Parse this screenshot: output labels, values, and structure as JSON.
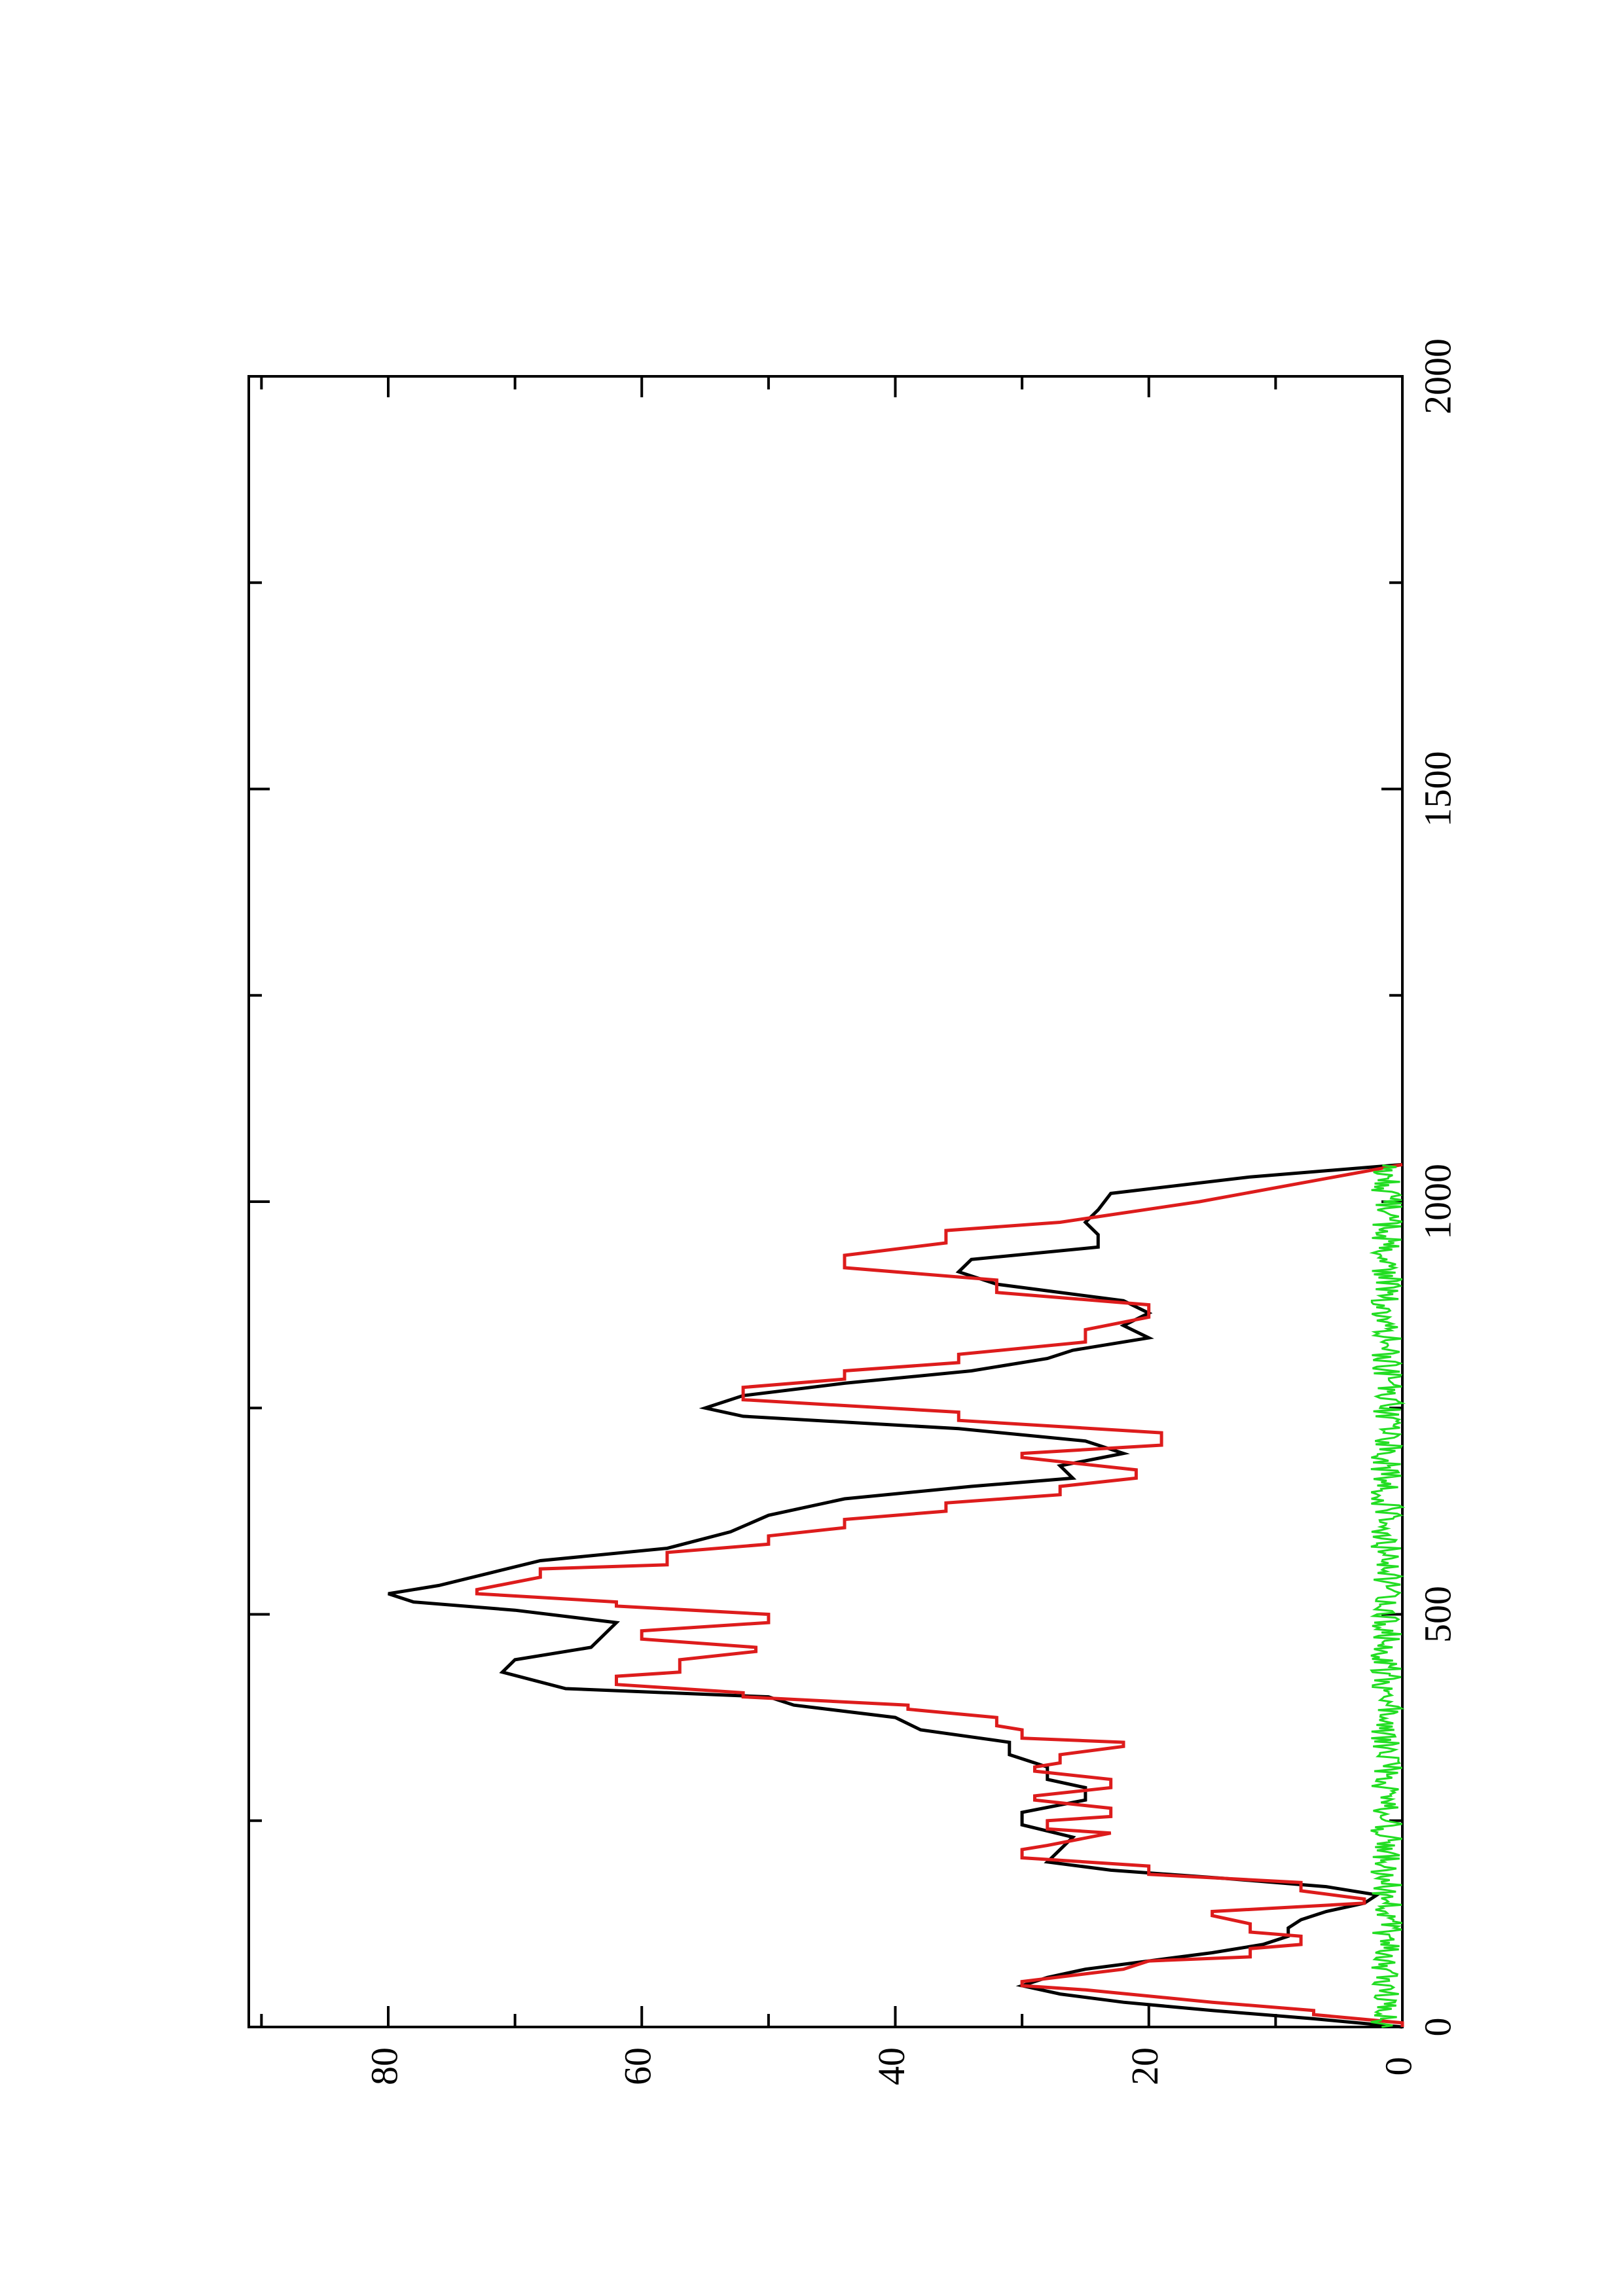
{
  "chart_data": {
    "type": "line",
    "orientation": "rotated 90° counter-clockwise (x axis runs vertically, y axis horizontally)",
    "title": "",
    "xlabel": "",
    "ylabel": "",
    "xlim": [
      0,
      2000
    ],
    "ylim": [
      0,
      91
    ],
    "x_major_ticks": [
      0,
      500,
      1000,
      1500,
      2000
    ],
    "x_minor_ticks": [
      250,
      750,
      1250,
      1750
    ],
    "y_major_ticks": [
      0,
      20,
      40,
      60,
      80
    ],
    "y_minor_ticks": [
      10,
      30,
      50,
      70,
      90
    ],
    "x_tick_labels": [
      "0",
      "500",
      "1000",
      "1500",
      "2000"
    ],
    "y_tick_labels": [
      "0",
      "20",
      "40",
      "60",
      "80"
    ],
    "grid": false,
    "legend": "none",
    "series": [
      {
        "color": "#000000",
        "x": [
          0,
          10,
          20,
          30,
          40,
          50,
          60,
          70,
          80,
          90,
          100,
          110,
          120,
          130,
          140,
          150,
          160,
          170,
          180,
          190,
          200,
          215,
          230,
          245,
          260,
          275,
          290,
          300,
          315,
          330,
          345,
          360,
          375,
          390,
          400,
          410,
          430,
          445,
          460,
          475,
          490,
          505,
          515,
          525,
          535,
          550,
          565,
          580,
          600,
          620,
          640,
          655,
          665,
          680,
          695,
          710,
          725,
          740,
          750,
          765,
          780,
          795,
          810,
          820,
          835,
          850,
          865,
          880,
          900,
          915,
          930,
          945,
          960,
          975,
          990,
          1010,
          1030,
          1045
        ],
        "y": [
          0,
          7,
          15,
          22,
          27,
          30,
          28,
          25,
          20,
          15,
          11,
          9,
          9,
          8,
          6,
          3,
          2,
          6,
          14,
          23,
          28,
          27,
          26,
          30,
          30,
          25,
          25,
          28,
          28,
          31,
          31,
          38,
          40,
          48,
          50,
          66,
          71,
          70,
          64,
          63,
          62,
          70,
          78,
          80,
          76,
          72,
          68,
          58,
          53,
          50,
          44,
          34,
          26,
          27,
          22,
          25,
          35,
          52,
          55,
          52,
          44,
          34,
          28,
          26,
          20,
          22,
          20,
          22,
          32,
          35,
          34,
          24,
          24,
          25,
          24,
          23,
          12,
          0
        ]
      },
      {
        "color": "#dd1c1c",
        "x": [
          0,
          5,
          15,
          20,
          30,
          45,
          50,
          55,
          70,
          80,
          85,
          95,
          100,
          110,
          115,
          125,
          135,
          140,
          150,
          155,
          165,
          175,
          185,
          195,
          205,
          215,
          220,
          235,
          240,
          250,
          255,
          265,
          275,
          280,
          290,
          300,
          310,
          315,
          320,
          330,
          340,
          345,
          350,
          360,
          365,
          375,
          385,
          390,
          400,
          405,
          415,
          425,
          430,
          445,
          455,
          460,
          470,
          480,
          490,
          500,
          510,
          515,
          525,
          530,
          545,
          555,
          560,
          575,
          585,
          595,
          605,
          615,
          625,
          635,
          645,
          655,
          665,
          675,
          690,
          695,
          705,
          720,
          735,
          745,
          760,
          775,
          785,
          795,
          805,
          815,
          830,
          845,
          860,
          875,
          890,
          905,
          920,
          935,
          950,
          965,
          975,
          1000,
          1045
        ],
        "y": [
          0,
          0,
          7,
          7,
          15,
          25,
          30,
          30,
          22,
          20,
          12,
          12,
          8,
          8,
          12,
          12,
          15,
          15,
          3,
          3,
          8,
          8,
          20,
          20,
          30,
          30,
          28,
          23,
          28,
          28,
          23,
          23,
          29,
          29,
          23,
          23,
          29,
          29,
          27,
          27,
          22,
          22,
          30,
          30,
          32,
          32,
          39,
          39,
          52,
          52,
          62,
          62,
          57,
          57,
          51,
          51,
          60,
          60,
          50,
          50,
          62,
          62,
          73,
          73,
          68,
          68,
          58,
          58,
          50,
          50,
          44,
          44,
          36,
          36,
          27,
          27,
          21,
          21,
          30,
          30,
          19,
          19,
          35,
          35,
          52,
          52,
          44,
          44,
          35,
          35,
          25,
          25,
          20,
          20,
          32,
          32,
          44,
          44,
          36,
          36,
          27,
          16,
          0
        ]
      },
      {
        "color": "#22dd22",
        "x_range": [
          0,
          1045
        ],
        "y_range": [
          0,
          2.5
        ],
        "description": "dense low-amplitude noise near y = 0"
      }
    ]
  }
}
